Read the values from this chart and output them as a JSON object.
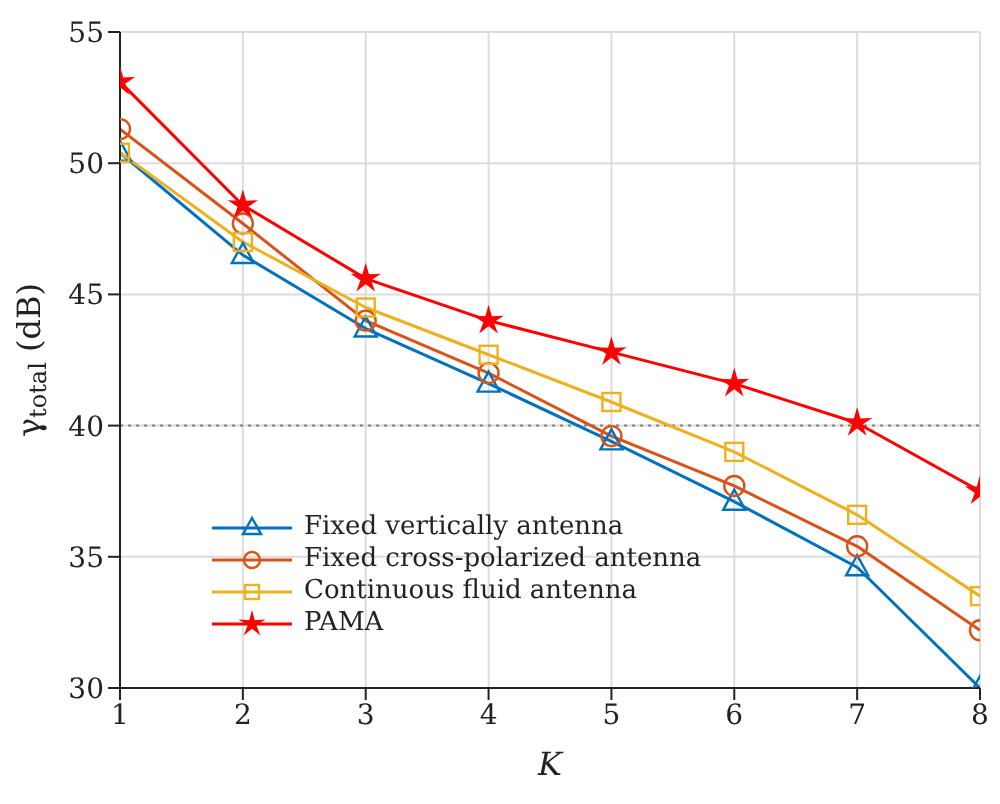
{
  "chart_data": {
    "type": "line",
    "xlabel": "K",
    "ylabel": "γ$_{total}$ (dB)",
    "x": [
      1,
      2,
      3,
      4,
      5,
      6,
      7,
      8
    ],
    "xlim": [
      1,
      8
    ],
    "xticks": [
      1,
      2,
      3,
      4,
      5,
      6,
      7,
      8
    ],
    "ylim": [
      30,
      55
    ],
    "yticks": [
      30,
      35,
      40,
      45,
      50,
      55
    ],
    "grid": true,
    "legend": "bottom left",
    "ref_lines": [
      {
        "axis": "y",
        "value": 40,
        "color": "#808080",
        "line_style": "dotted"
      }
    ],
    "series": [
      {
        "name": "Fixed vertically antenna",
        "color": "#0072bd",
        "marker": "triangle",
        "values": [
          50.4,
          46.5,
          43.7,
          41.6,
          39.4,
          37.1,
          34.6,
          30.0
        ]
      },
      {
        "name": "Fixed cross-polarized antenna",
        "color": "#d95319",
        "marker": "circle",
        "values": [
          51.3,
          47.7,
          44.0,
          42.0,
          39.6,
          37.7,
          35.4,
          32.2
        ]
      },
      {
        "name": "Continuous fluid antenna",
        "color": "#edb120",
        "marker": "square",
        "values": [
          50.4,
          47.0,
          44.5,
          42.7,
          40.9,
          39.0,
          36.6,
          33.5
        ]
      },
      {
        "name": "PAMA",
        "color": "#ff0000",
        "marker": "star",
        "values": [
          53.1,
          48.4,
          45.6,
          44.0,
          42.8,
          41.6,
          40.1,
          37.5
        ]
      }
    ]
  }
}
